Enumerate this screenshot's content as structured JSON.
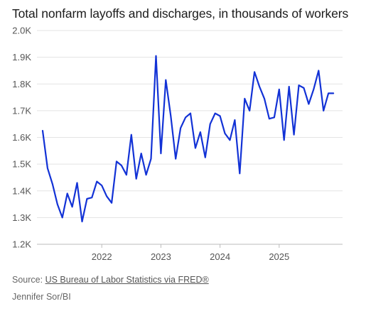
{
  "chart_data": {
    "type": "line",
    "title": "Total nonfarm layoffs and discharges, in thousands of workers",
    "xlabel": "",
    "ylabel": "",
    "ylim": [
      1200,
      2000
    ],
    "y_ticks": [
      1200,
      1300,
      1400,
      1500,
      1600,
      1700,
      1800,
      1900,
      2000
    ],
    "y_tick_labels": [
      "1.2K",
      "1.3K",
      "1.4K",
      "1.5K",
      "1.6K",
      "1.7K",
      "1.8K",
      "1.9K",
      "2.0K"
    ],
    "x_ticks": [
      "2022",
      "2023",
      "2024",
      "2025"
    ],
    "grid": "horizontal",
    "legend": "none",
    "line_color": "#1232d6",
    "series": [
      {
        "x": [
          "2021-01",
          "2021-02",
          "2021-03",
          "2021-04",
          "2021-05",
          "2021-06",
          "2021-07",
          "2021-08",
          "2021-09",
          "2021-10",
          "2021-11",
          "2021-12",
          "2022-01",
          "2022-02",
          "2022-03",
          "2022-04",
          "2022-05",
          "2022-06",
          "2022-07",
          "2022-08",
          "2022-09",
          "2022-10",
          "2022-11",
          "2022-12",
          "2023-01",
          "2023-02",
          "2023-03",
          "2023-04",
          "2023-05",
          "2023-06",
          "2023-07",
          "2023-08",
          "2023-09",
          "2023-10",
          "2023-11",
          "2023-12",
          "2024-01",
          "2024-02",
          "2024-03",
          "2024-04",
          "2024-05",
          "2024-06",
          "2024-07",
          "2024-08",
          "2024-09",
          "2024-10",
          "2024-11",
          "2024-12",
          "2025-01",
          "2025-02",
          "2025-03",
          "2025-04",
          "2025-05",
          "2025-06",
          "2025-07",
          "2025-08",
          "2025-09",
          "2025-10",
          "2025-11",
          "2025-12"
        ],
        "values": [
          1625,
          1485,
          1425,
          1350,
          1300,
          1390,
          1340,
          1430,
          1285,
          1370,
          1375,
          1435,
          1420,
          1380,
          1355,
          1510,
          1495,
          1460,
          1610,
          1445,
          1540,
          1460,
          1520,
          1905,
          1540,
          1815,
          1680,
          1520,
          1635,
          1675,
          1690,
          1560,
          1620,
          1525,
          1650,
          1690,
          1680,
          1615,
          1590,
          1665,
          1465,
          1745,
          1700,
          1845,
          1790,
          1745,
          1670,
          1675,
          1780,
          1590,
          1790,
          1610,
          1795,
          1785,
          1725,
          1780,
          1850,
          1700,
          1765,
          1765
        ]
      }
    ]
  },
  "footer": {
    "source_prefix": "Source: ",
    "source_link": "US Bureau of Labor Statistics via FRED®",
    "credit": "Jennifer Sor/BI"
  }
}
